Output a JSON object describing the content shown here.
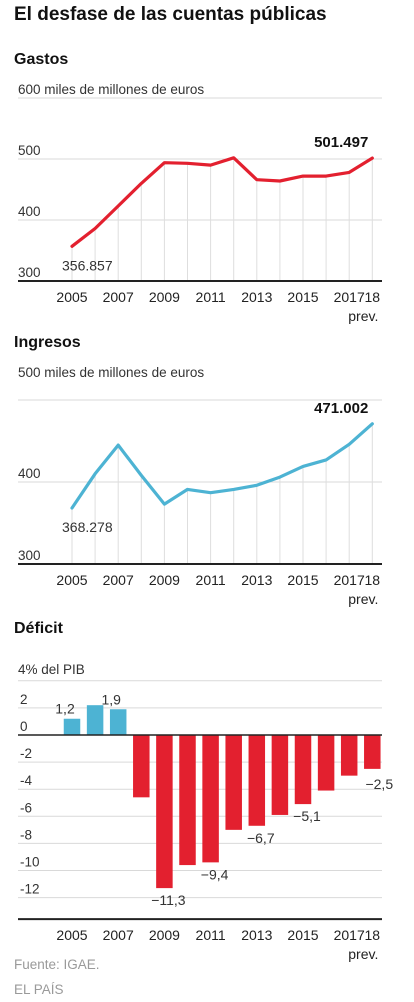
{
  "title": "El desfase de las cuentas públicas",
  "source": "Fuente: IGAE.",
  "publisher": "EL PAÍS",
  "colors": {
    "gastos": "#e3202f",
    "ingresos": "#4db3d3",
    "deficit_positive": "#4db3d3",
    "deficit_negative": "#e3202f"
  },
  "chart_data": [
    {
      "type": "line",
      "title": "Gastos",
      "unit_label": "600 miles de millones de euros",
      "x": [
        "2005",
        "2006",
        "2007",
        "2008",
        "2009",
        "2010",
        "2011",
        "2012",
        "2013",
        "2014",
        "2015",
        "2016",
        "2017",
        "18"
      ],
      "x_tick_labels": [
        "2005",
        "2007",
        "2009",
        "2011",
        "2013",
        "2015",
        "2017",
        "18"
      ],
      "x_tick_sublabel": "prev.",
      "y_ticks": [
        "500",
        "400",
        "300"
      ],
      "ylim": [
        300,
        600
      ],
      "series": [
        {
          "values": [
            356.857,
            386,
            423,
            460,
            494,
            493,
            490,
            502,
            466,
            464,
            472,
            472,
            478,
            501.497
          ]
        }
      ],
      "annotations": [
        {
          "label": "356.857",
          "point_index": 0
        },
        {
          "label": "501.497",
          "point_index": 13,
          "bold": true
        }
      ]
    },
    {
      "type": "line",
      "title": "Ingresos",
      "unit_label": "500 miles de millones de euros",
      "x": [
        "2005",
        "2006",
        "2007",
        "2008",
        "2009",
        "2010",
        "2011",
        "2012",
        "2013",
        "2014",
        "2015",
        "2016",
        "2017",
        "18"
      ],
      "x_tick_labels": [
        "2005",
        "2007",
        "2009",
        "2011",
        "2013",
        "2015",
        "2017",
        "18"
      ],
      "x_tick_sublabel": "prev.",
      "y_ticks": [
        "400",
        "300"
      ],
      "ylim": [
        300,
        500
      ],
      "series": [
        {
          "values": [
            368.278,
            410,
            445,
            408,
            373,
            391,
            387,
            391,
            396,
            406,
            419,
            427,
            446,
            471.002
          ]
        }
      ],
      "annotations": [
        {
          "label": "368.278",
          "point_index": 0
        },
        {
          "label": "471.002",
          "point_index": 13,
          "bold": true
        }
      ]
    },
    {
      "type": "bar",
      "title": "Déficit",
      "unit_label": "4% del PIB",
      "categories": [
        "2005",
        "2006",
        "2007",
        "2008",
        "2009",
        "2010",
        "2011",
        "2012",
        "2013",
        "2014",
        "2015",
        "2016",
        "2017",
        "18"
      ],
      "x_tick_labels": [
        "2005",
        "2007",
        "2009",
        "2011",
        "2013",
        "2015",
        "2017",
        "18"
      ],
      "x_tick_sublabel": "prev.",
      "y_ticks": [
        "2",
        "0",
        "-2",
        "-4",
        "-6",
        "-8",
        "-10",
        "-12"
      ],
      "ylim": [
        -13,
        4
      ],
      "values": [
        1.2,
        2.2,
        1.9,
        -4.6,
        -11.3,
        -9.6,
        -9.4,
        -7.0,
        -6.7,
        -5.9,
        -5.1,
        -4.1,
        -3.0,
        -2.5
      ],
      "annotations": [
        {
          "label": "1,2",
          "point_index": 0
        },
        {
          "label": "1,9",
          "point_index": 2
        },
        {
          "label": "−11,3",
          "point_index": 4
        },
        {
          "label": "−9,4",
          "point_index": 6
        },
        {
          "label": "−6,7",
          "point_index": 8
        },
        {
          "label": "−5,1",
          "point_index": 10
        },
        {
          "label": "−2,5",
          "point_index": 13
        }
      ]
    }
  ]
}
